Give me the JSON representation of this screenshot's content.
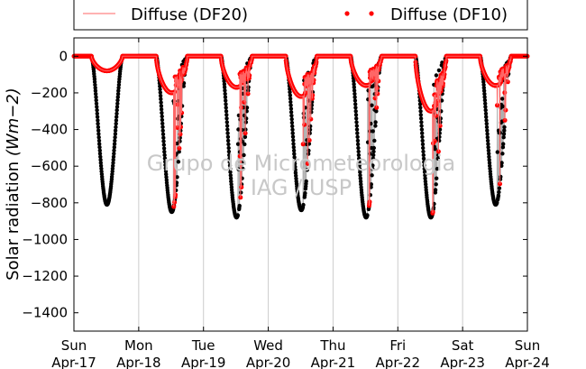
{
  "chart_data": {
    "type": "scatter",
    "ylabel": "Solar radiation",
    "ylabel_unit": "(Wm−2)",
    "ylim": [
      -1500,
      100
    ],
    "y_ticks": [
      0,
      -200,
      -400,
      -600,
      -800,
      -1000,
      -1200,
      -1400
    ],
    "y_tick_labels": [
      "0",
      "−200",
      "−400",
      "−600",
      "−800",
      "−1000",
      "−1200",
      "−1400"
    ],
    "x_ticks": [
      {
        "day": "Sun",
        "date": "Apr-17"
      },
      {
        "day": "Mon",
        "date": "Apr-18"
      },
      {
        "day": "Tue",
        "date": "Apr-19"
      },
      {
        "day": "Wed",
        "date": "Apr-20"
      },
      {
        "day": "Thu",
        "date": "Apr-21"
      },
      {
        "day": "Fri",
        "date": "Apr-22"
      },
      {
        "day": "Sat",
        "date": "Apr-23"
      },
      {
        "day": "Sun",
        "date": "Apr-24"
      }
    ],
    "grid": "vertical",
    "legend_placement": "top",
    "watermark": [
      "Grupo de Micrometeorologia",
      "IAG / USP"
    ],
    "series": [
      {
        "name": "Diffuse (DF20)",
        "style": "line",
        "color": "#ff6666"
      },
      {
        "name": "Diffuse (DF10)",
        "style": "dots",
        "color": "#ff0000"
      }
    ],
    "unlabeled_series": {
      "style": "dots",
      "color": "#000000",
      "line_color": "#b0b0b0"
    },
    "daily_minimum_total": [
      -810,
      -850,
      -880,
      -840,
      -880,
      -880,
      -810
    ],
    "daily_minimum_diffuse": [
      -80,
      -200,
      -170,
      -220,
      -160,
      -300,
      -160
    ]
  }
}
